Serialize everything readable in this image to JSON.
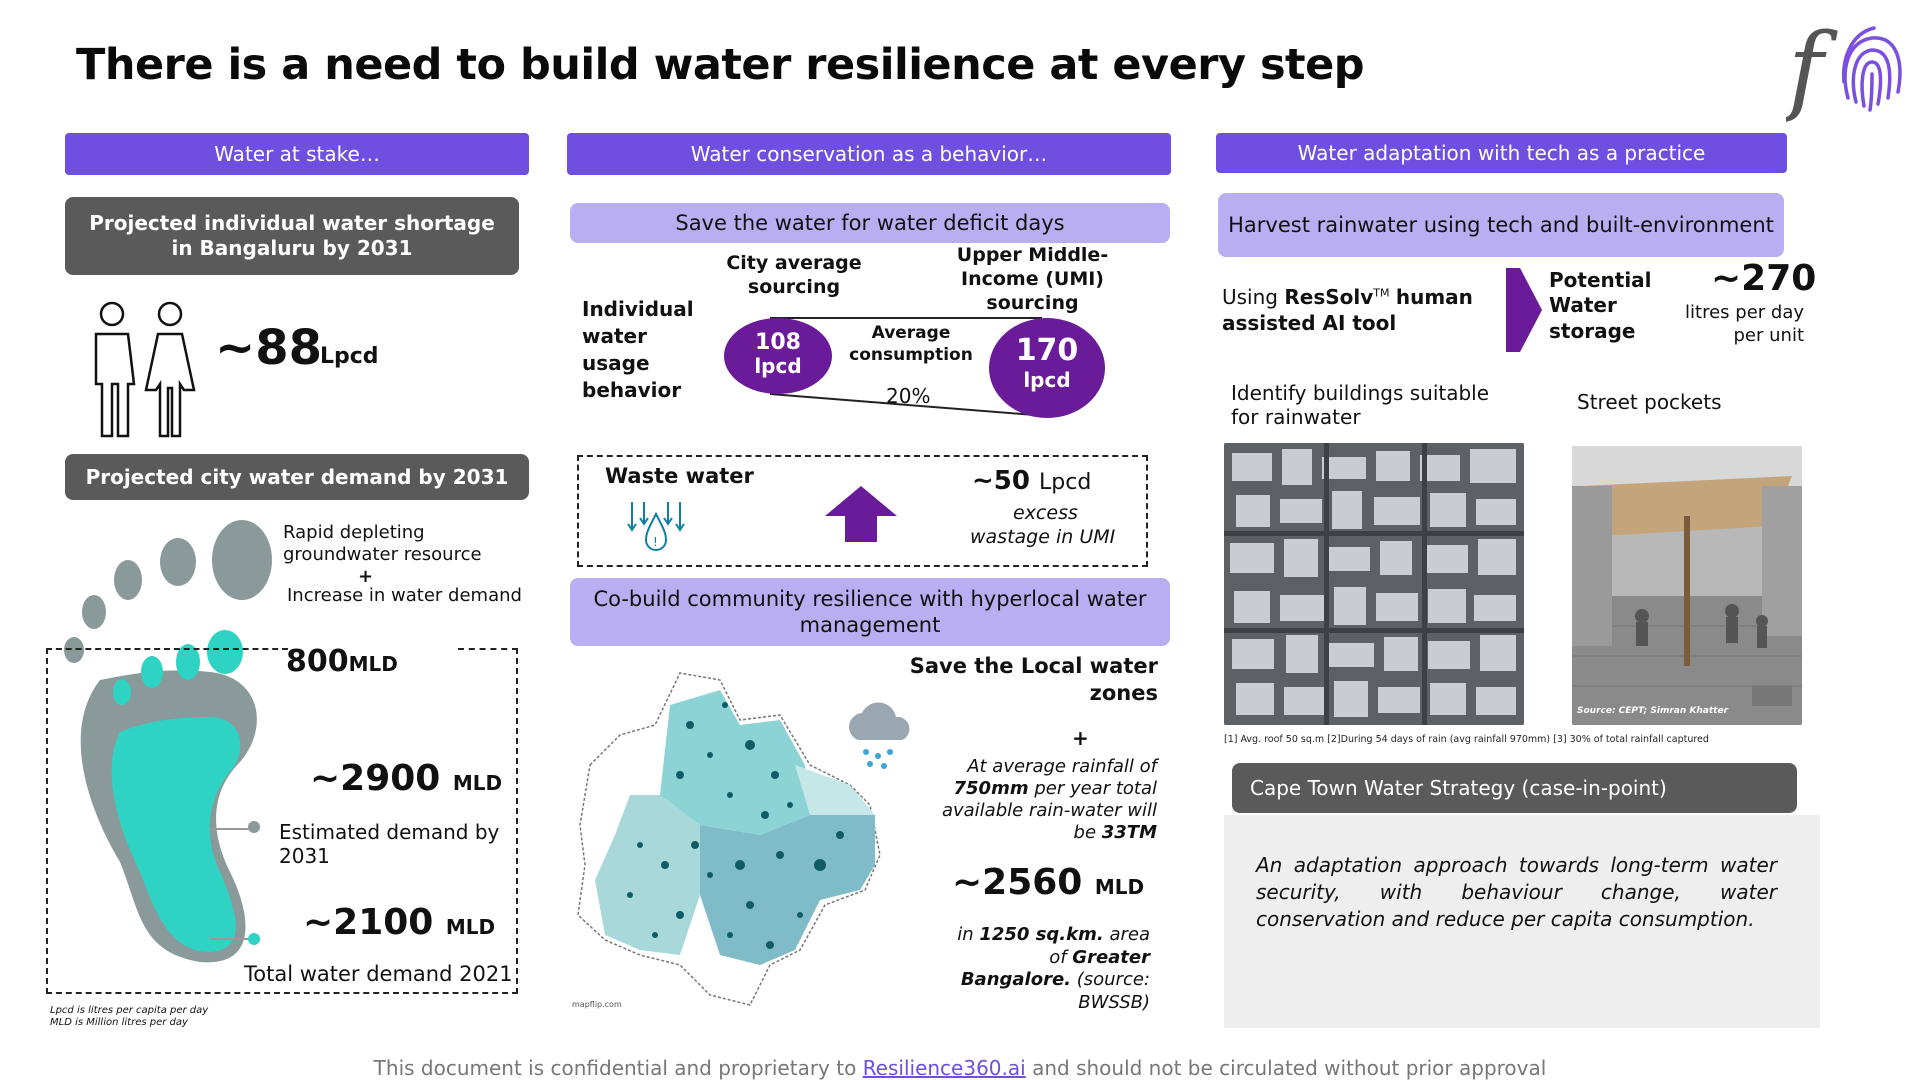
{
  "title": "There is a need to build water resilience at every step",
  "colors": {
    "purple": "#6f4fe0",
    "lavender": "#b9aef1",
    "darkgray": "#5a5a5a",
    "teal": "#2fd3c4",
    "navy": "#4a148c"
  },
  "left": {
    "header": "Water at stake…",
    "shortage_title": "Projected individual water shortage in Bangaluru by 2031",
    "shortage_value": "~88",
    "shortage_unit": "Lpcd",
    "demand_title": "Projected city water demand by 2031",
    "depleting": "Rapid depleting groundwater resource",
    "plus": "+",
    "increase": "Increase in water demand",
    "v800": "800",
    "v800_unit": "MLD",
    "v2900": "~2900",
    "v2900_unit": "MLD",
    "estimated": "Estimated demand by 2031",
    "v2100": "~2100",
    "v2100_unit": "MLD",
    "total": "Total water demand 2021",
    "note1": "Lpcd is litres per capita per day",
    "note2": "MLD is Million litres per day"
  },
  "middle": {
    "header": "Water conservation as a behavior…",
    "save_deficit": "Save the water for water deficit days",
    "city_avg": "City average sourcing",
    "umi": "Upper Middle-Income (UMI) sourcing",
    "individual": "Individual water usage behavior",
    "v108": "108",
    "v108_unit": "lpcd",
    "avg_consumption": "Average consumption",
    "v170": "170",
    "v170_unit": "lpcd",
    "pct": "20%",
    "waste_water": "Waste water",
    "v50": "~50",
    "v50_unit": "Lpcd",
    "excess": "excess",
    "wastage": "wastage in UMI",
    "cobuild": "Co-build community resilience with hyperlocal water management",
    "save_local": "Save the Local water zones",
    "plus": "+",
    "rain_text_1": "At average rainfall of",
    "rain_text_2": "750mm",
    "rain_text_3": "per year total available rain-water will be",
    "rain_text_4": "33TM",
    "v2560": "~2560",
    "v2560_unit": "MLD",
    "area_1": "in",
    "area_2": "1250 sq.km.",
    "area_3": "area of",
    "area_4": "Greater Bangalore.",
    "source": "(source: BWSSB)",
    "map_credit": "mapflip.com"
  },
  "right": {
    "header": "Water adaptation with tech as a practice",
    "harvest": "Harvest rainwater using tech and built-environment",
    "using_1": "Using",
    "using_2": "ResSolv",
    "tm": "TM",
    "using_3": "human assisted AI tool",
    "potential": "Potential Water storage",
    "v270": "~270",
    "per_day": "litres per day per unit",
    "identify": "Identify buildings suitable for rainwater",
    "street": "Street pockets",
    "photo_credit": "Source: CEPT; Simran Khatter",
    "footnote": "[1] Avg. roof 50 sq.m [2]During 54 days of rain (avg rainfall 970mm) [3] 30% of total rainfall captured",
    "cape_town": "Cape Town Water Strategy (case-in-point)",
    "adaptation": "An adaptation approach towards long-term water security, with behaviour change, water conservation and reduce per capita consumption."
  },
  "footer": {
    "pre": "This document is confidential and proprietary to",
    "link": "Resilience360.ai",
    "post": "and should not be circulated without prior approval"
  }
}
